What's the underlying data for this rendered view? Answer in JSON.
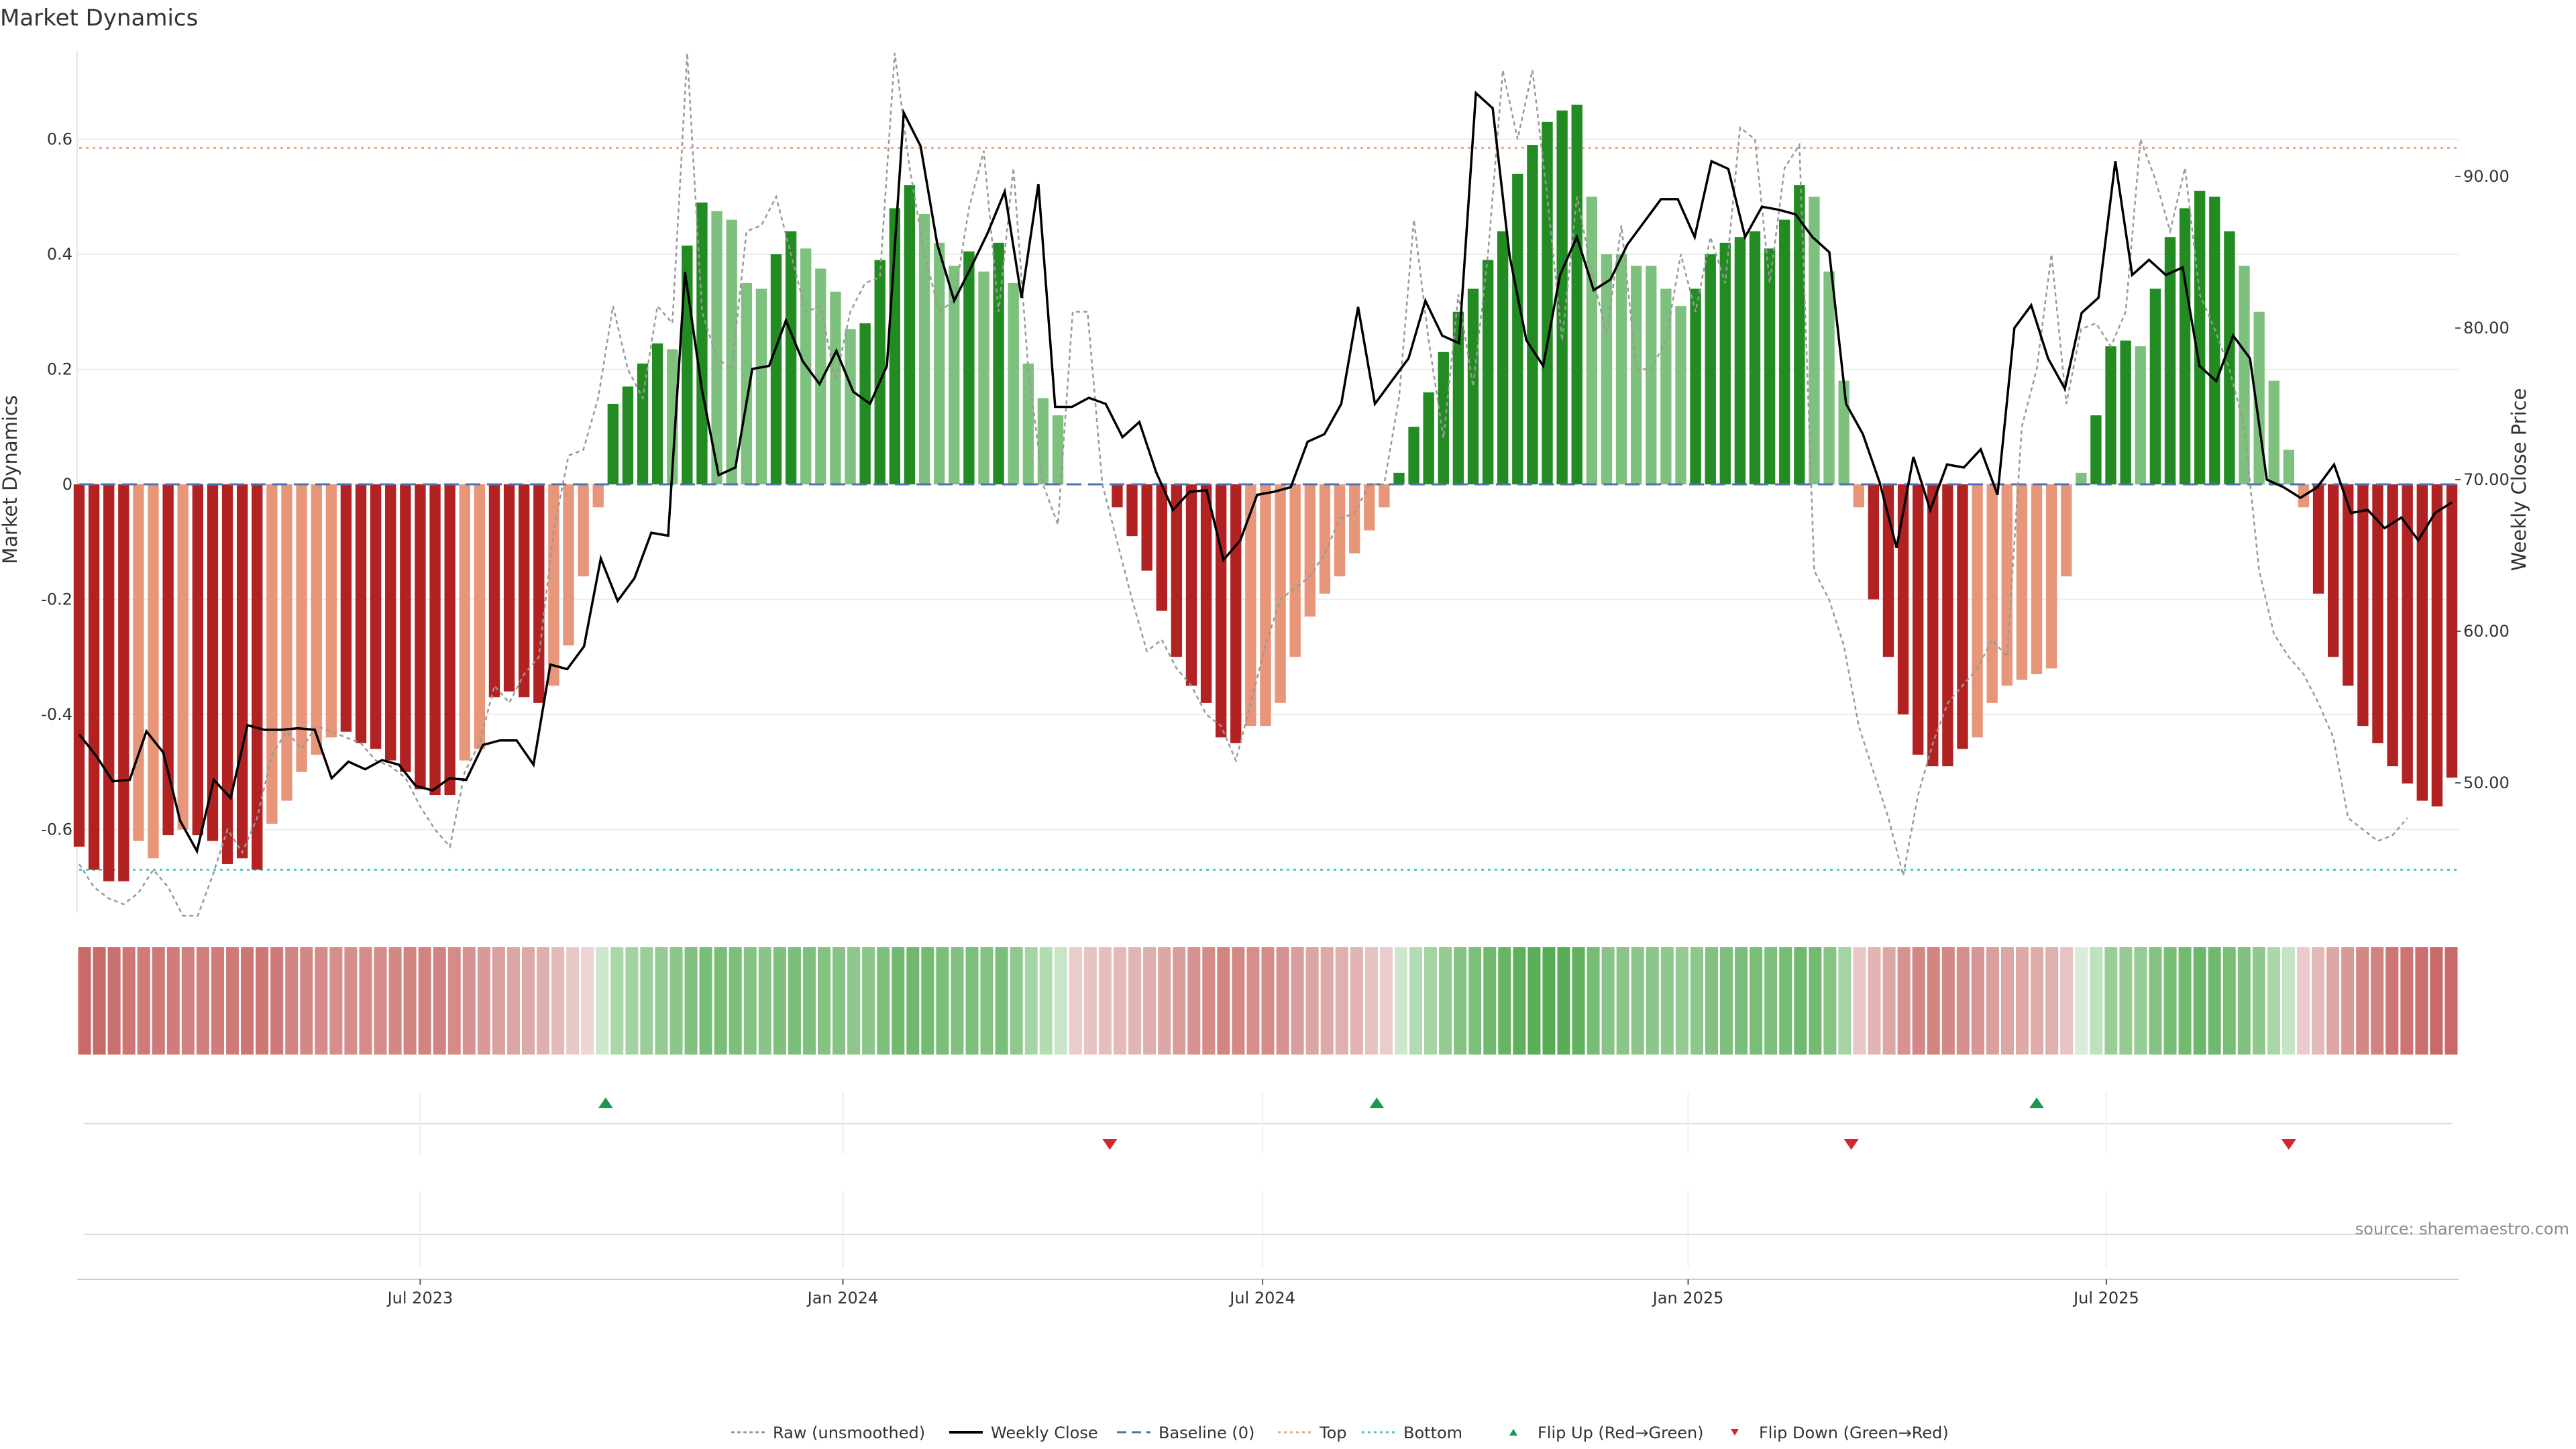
{
  "chart_data": {
    "type": "bar",
    "title": "Market Dynamics",
    "ylabel_left": "Market Dynamics",
    "ylabel_right": "Weekly Close Price",
    "source": "source: sharemaestro.com",
    "ylim_left": [
      -0.75,
      0.75
    ],
    "ylim_right": [
      42,
      98
    ],
    "yticks_left": [
      {
        "value": 0.6,
        "label": "0.6"
      },
      {
        "value": 0.4,
        "label": "0.4"
      },
      {
        "value": 0.2,
        "label": "0.2"
      },
      {
        "value": 0,
        "label": "0"
      },
      {
        "value": -0.2,
        "label": "-0.2"
      },
      {
        "value": -0.4,
        "label": "-0.4"
      },
      {
        "value": -0.6,
        "label": "-0.6"
      }
    ],
    "yticks_right": [
      {
        "value": 90,
        "label": "90.00"
      },
      {
        "value": 80,
        "label": "80.00"
      },
      {
        "value": 70,
        "label": "70.00"
      },
      {
        "value": 60,
        "label": "60.00"
      },
      {
        "value": 50,
        "label": "50.00"
      }
    ],
    "xticks": [
      {
        "week": 23,
        "label": "Jul 2023"
      },
      {
        "week": 51.5,
        "label": "Jan 2024"
      },
      {
        "week": 79.8,
        "label": "Jul 2024"
      },
      {
        "week": 108.5,
        "label": "Jan 2025"
      },
      {
        "week": 136.7,
        "label": "Jul 2025"
      }
    ],
    "reference_lines": {
      "baseline": 0,
      "top": 0.585,
      "bottom": -0.67
    },
    "market_dynamics": [
      -0.63,
      -0.67,
      -0.69,
      -0.69,
      -0.62,
      -0.65,
      -0.61,
      -0.6,
      -0.61,
      -0.62,
      -0.66,
      -0.65,
      -0.67,
      -0.59,
      -0.55,
      -0.5,
      -0.47,
      -0.44,
      -0.43,
      -0.45,
      -0.46,
      -0.48,
      -0.5,
      -0.53,
      -0.54,
      -0.54,
      -0.48,
      -0.46,
      -0.37,
      -0.36,
      -0.37,
      -0.38,
      -0.35,
      -0.28,
      -0.16,
      -0.04,
      0.14,
      0.17,
      0.21,
      0.245,
      0.235,
      0.415,
      0.49,
      0.475,
      0.46,
      0.35,
      0.34,
      0.4,
      0.44,
      0.41,
      0.375,
      0.335,
      0.27,
      0.28,
      0.39,
      0.48,
      0.52,
      0.47,
      0.42,
      0.38,
      0.405,
      0.37,
      0.42,
      0.35,
      0.21,
      0.15,
      0.12,
      0.0,
      0.0,
      0.0,
      -0.04,
      -0.09,
      -0.15,
      -0.22,
      -0.3,
      -0.35,
      -0.38,
      -0.44,
      -0.45,
      -0.42,
      -0.42,
      -0.38,
      -0.3,
      -0.23,
      -0.19,
      -0.16,
      -0.12,
      -0.08,
      -0.04,
      0.02,
      0.1,
      0.16,
      0.23,
      0.3,
      0.34,
      0.39,
      0.44,
      0.54,
      0.59,
      0.63,
      0.65,
      0.66,
      0.5,
      0.4,
      0.4,
      0.38,
      0.38,
      0.34,
      0.31,
      0.34,
      0.4,
      0.42,
      0.43,
      0.44,
      0.41,
      0.46,
      0.52,
      0.5,
      0.37,
      0.18,
      -0.04,
      -0.2,
      -0.3,
      -0.4,
      -0.47,
      -0.49,
      -0.49,
      -0.46,
      -0.44,
      -0.38,
      -0.35,
      -0.34,
      -0.33,
      -0.32,
      -0.16,
      0.02,
      0.12,
      0.24,
      0.25,
      0.24,
      0.34,
      0.43,
      0.48,
      0.51,
      0.5,
      0.44,
      0.38,
      0.3,
      0.18,
      0.06,
      -0.04,
      -0.19,
      -0.3,
      -0.35,
      -0.42,
      -0.45,
      -0.49,
      -0.52,
      -0.55,
      -0.56,
      -0.51
    ],
    "bar_colors": {
      "strong_red": "#b22222",
      "light_red": "#e8967a",
      "strong_green": "#228b22",
      "light_green": "#7ec17e"
    },
    "bar_strength": [
      "s",
      "s",
      "s",
      "s",
      "l",
      "l",
      "s",
      "l",
      "s",
      "s",
      "s",
      "s",
      "s",
      "l",
      "l",
      "l",
      "l",
      "l",
      "s",
      "s",
      "s",
      "s",
      "s",
      "s",
      "s",
      "s",
      "l",
      "l",
      "s",
      "s",
      "s",
      "s",
      "l",
      "l",
      "l",
      "l",
      "s",
      "s",
      "s",
      "s",
      "l",
      "s",
      "s",
      "l",
      "l",
      "l",
      "l",
      "s",
      "s",
      "l",
      "l",
      "l",
      "l",
      "s",
      "s",
      "s",
      "s",
      "l",
      "l",
      "l",
      "s",
      "l",
      "s",
      "l",
      "l",
      "l",
      "l",
      "s",
      "s",
      "s",
      "s",
      "s",
      "s",
      "s",
      "s",
      "s",
      "s",
      "s",
      "s",
      "l",
      "l",
      "l",
      "l",
      "l",
      "l",
      "l",
      "l",
      "l",
      "l",
      "s",
      "s",
      "s",
      "s",
      "s",
      "s",
      "s",
      "s",
      "s",
      "s",
      "s",
      "s",
      "s",
      "l",
      "l",
      "l",
      "l",
      "l",
      "l",
      "l",
      "s",
      "s",
      "s",
      "s",
      "s",
      "s",
      "s",
      "s",
      "l",
      "l",
      "l",
      "l",
      "s",
      "s",
      "s",
      "s",
      "s",
      "s",
      "s",
      "l",
      "l",
      "l",
      "l",
      "l",
      "l",
      "l",
      "l",
      "s",
      "s",
      "s",
      "l",
      "s",
      "s",
      "s",
      "s",
      "s",
      "s",
      "l",
      "l",
      "l",
      "l",
      "l",
      "s",
      "s",
      "s",
      "s",
      "s",
      "s",
      "s",
      "s",
      "s",
      "s",
      "l"
    ],
    "raw_unsmoothed": [
      -0.66,
      -0.7,
      -0.72,
      -0.73,
      -0.71,
      -0.67,
      -0.7,
      -0.75,
      -0.75,
      -0.68,
      -0.6,
      -0.64,
      -0.58,
      -0.47,
      -0.43,
      -0.46,
      -0.42,
      -0.43,
      -0.44,
      -0.45,
      -0.48,
      -0.49,
      -0.51,
      -0.56,
      -0.6,
      -0.63,
      -0.5,
      -0.45,
      -0.35,
      -0.38,
      -0.33,
      -0.3,
      -0.08,
      0.05,
      0.06,
      0.15,
      0.31,
      0.2,
      0.15,
      0.31,
      0.28,
      0.75,
      0.3,
      0.22,
      0.2,
      0.44,
      0.45,
      0.5,
      0.4,
      0.3,
      0.31,
      0.18,
      0.3,
      0.35,
      0.36,
      0.75,
      0.55,
      0.4,
      0.3,
      0.32,
      0.48,
      0.58,
      0.3,
      0.55,
      0.2,
      0.0,
      -0.07,
      0.3,
      0.3,
      0.0,
      -0.1,
      -0.2,
      -0.29,
      -0.27,
      -0.32,
      -0.35,
      -0.4,
      -0.42,
      -0.48,
      -0.38,
      -0.28,
      -0.2,
      -0.18,
      -0.16,
      -0.12,
      -0.06,
      -0.05,
      0.0,
      0.0,
      0.15,
      0.46,
      0.25,
      0.08,
      0.33,
      0.17,
      0.4,
      0.72,
      0.6,
      0.72,
      0.5,
      0.25,
      0.5,
      0.37,
      0.26,
      0.45,
      0.2,
      0.2,
      0.25,
      0.4,
      0.3,
      0.43,
      0.35,
      0.62,
      0.6,
      0.35,
      0.55,
      0.59,
      -0.15,
      -0.2,
      -0.28,
      -0.42,
      -0.5,
      -0.58,
      -0.68,
      -0.54,
      -0.45,
      -0.38,
      -0.35,
      -0.32,
      -0.27,
      -0.3,
      0.1,
      0.2,
      0.4,
      0.14,
      0.27,
      0.28,
      0.24,
      0.3,
      0.6,
      0.53,
      0.44,
      0.55,
      0.33,
      0.27,
      0.2,
      0.1,
      -0.15,
      -0.26,
      -0.3,
      -0.33,
      -0.38,
      -0.44,
      -0.58,
      -0.6,
      -0.62,
      -0.61,
      -0.58
    ],
    "weekly_close": [
      53.2,
      51.8,
      50.1,
      50.2,
      53.4,
      52.0,
      47.5,
      45.5,
      50.2,
      49.0,
      53.8,
      53.5,
      53.5,
      53.6,
      53.5,
      50.3,
      51.4,
      50.9,
      51.5,
      51.2,
      49.8,
      49.5,
      50.3,
      50.2,
      52.5,
      52.8,
      52.8,
      51.2,
      57.8,
      57.5,
      59.0,
      64.8,
      62.0,
      63.5,
      66.5,
      66.3,
      83.7,
      76.0,
      70.3,
      70.8,
      77.3,
      77.5,
      80.5,
      77.8,
      76.3,
      78.5,
      75.8,
      75.0,
      77.5,
      94.2,
      92.0,
      85.5,
      81.8,
      84.0,
      86.3,
      89.0,
      82.0,
      89.5,
      74.8,
      74.8,
      75.4,
      75.0,
      72.8,
      73.8,
      70.5,
      68.0,
      69.2,
      69.3,
      64.7,
      66.0,
      69.0,
      69.2,
      69.5,
      72.5,
      73.0,
      75.0,
      81.4,
      75.0,
      76.5,
      78.0,
      81.8,
      79.5,
      79.0,
      95.5,
      94.5,
      84.8,
      79.2,
      77.5,
      83.5,
      86.0,
      82.5,
      83.2,
      85.5,
      87.0,
      88.5,
      88.5,
      86.0,
      91.0,
      90.5,
      86.0,
      88.0,
      87.8,
      87.5,
      86.0,
      85.0,
      75.0,
      73.0,
      69.8,
      65.5,
      71.5,
      68.0,
      71.0,
      70.8,
      72.0,
      69.0,
      80.0,
      81.5,
      78.0,
      76.0,
      81.0,
      82.0,
      91.0,
      83.5,
      84.5,
      83.5,
      84.0,
      77.5,
      76.5,
      79.5,
      78.0,
      70.0,
      69.5,
      68.8,
      69.5,
      71.0,
      67.8,
      68.0,
      66.8,
      67.5,
      66.0,
      67.8,
      68.5
    ],
    "heat_strip_colors": [
      "#c96a68",
      "#c96a68",
      "#ca706e",
      "#cd7674",
      "#cf7a78",
      "#ce7a78",
      "#cf7c7a",
      "#d0807e",
      "#d17f7d",
      "#cf7c7a",
      "#ce7a78",
      "#cd7674",
      "#cd7674",
      "#ce7a78",
      "#d08381",
      "#d38886",
      "#d48b89",
      "#d58e8c",
      "#d58e8c",
      "#d48b89",
      "#d48b89",
      "#d38886",
      "#d2847f",
      "#d08381",
      "#d08381",
      "#d48b89",
      "#d69290",
      "#d89896",
      "#daa09e",
      "#dca6a4",
      "#dda9a7",
      "#e0b0ae",
      "#e3bab8",
      "#e8c8c6",
      "#eed5d4",
      "#cde7cc",
      "#a9d7a8",
      "#a2d3a1",
      "#9ace98",
      "#94cb92",
      "#8cc78a",
      "#82c180",
      "#78bd76",
      "#79bd77",
      "#7cbf7a",
      "#85c383",
      "#88c486",
      "#7fc07d",
      "#7bbe79",
      "#7fc07d",
      "#83c281",
      "#86c384",
      "#8dc78b",
      "#8ac689",
      "#7dbf7b",
      "#73ba71",
      "#6fb86d",
      "#74bb72",
      "#7abe78",
      "#82c180",
      "#7cbf7a",
      "#83c281",
      "#7bbe79",
      "#8ec88c",
      "#a6d5a5",
      "#b4dcb3",
      "#c8e5c7",
      "#e9cccb",
      "#e6c2c1",
      "#e4bdbc",
      "#e3bab8",
      "#e1b5b3",
      "#deaeac",
      "#dca6a4",
      "#d99d9b",
      "#d69290",
      "#d48b89",
      "#d2847f",
      "#d38886",
      "#d58e8c",
      "#d48b89",
      "#d69290",
      "#d99d9b",
      "#dca6a4",
      "#dea9a7",
      "#e0b0ae",
      "#e2b5b3",
      "#e6c2c1",
      "#e9cccb",
      "#cde7cc",
      "#b1dbb0",
      "#a3d4a2",
      "#93cb91",
      "#85c383",
      "#7cbf7a",
      "#71b96f",
      "#67b465",
      "#5fb05d",
      "#5aae58",
      "#58ac56",
      "#5aad58",
      "#61b15f",
      "#76bc74",
      "#86c384",
      "#88c486",
      "#8bc589",
      "#8ac689",
      "#8fc88d",
      "#93cb91",
      "#8dc78b",
      "#82c180",
      "#7dbf7b",
      "#7bbe79",
      "#79bd77",
      "#7ebf7c",
      "#76bc74",
      "#6fb86d",
      "#72ba70",
      "#86c384",
      "#a5d4a4",
      "#e8c8c6",
      "#e2b5b3",
      "#dca6a4",
      "#d69290",
      "#d38886",
      "#d2847f",
      "#d38886",
      "#d58e8c",
      "#d79593",
      "#daa09e",
      "#dca6a4",
      "#dea9a7",
      "#dfaca9",
      "#e0b0ae",
      "#e7c4c3",
      "#d9eed8",
      "#bfe2be",
      "#99cf97",
      "#93cb91",
      "#95cc93",
      "#84c282",
      "#78bd76",
      "#72ba70",
      "#6db76b",
      "#6fb86d",
      "#79bd77",
      "#81c17f",
      "#8fc88d",
      "#a9d7a8",
      "#c4e4c3",
      "#e9cccb",
      "#e3bab8",
      "#dca6a4",
      "#d89896",
      "#d38886",
      "#d08381",
      "#cd7674",
      "#cc7472",
      "#cb706e",
      "#c96a68",
      "#c96a68"
    ],
    "flip_up_weeks": [
      35.5,
      87.5,
      132
    ],
    "flip_down_weeks": [
      69.5,
      119.5,
      149
    ],
    "legend": [
      {
        "key": "raw",
        "label": "Raw (unsmoothed)",
        "color": "#999999"
      },
      {
        "key": "close",
        "label": "Weekly Close",
        "color": "#000000"
      },
      {
        "key": "baseline",
        "label": "Baseline (0)",
        "color": "#4c72b0"
      },
      {
        "key": "top",
        "label": "Top",
        "color": "#e8a68a"
      },
      {
        "key": "bottom",
        "label": "Bottom",
        "color": "#4fc6c6"
      },
      {
        "key": "flip_up",
        "label": "Flip Up (Red→Green)",
        "color": "#1a9850"
      },
      {
        "key": "flip_down",
        "label": "Flip Down (Green→Red)",
        "color": "#d62728"
      }
    ]
  }
}
